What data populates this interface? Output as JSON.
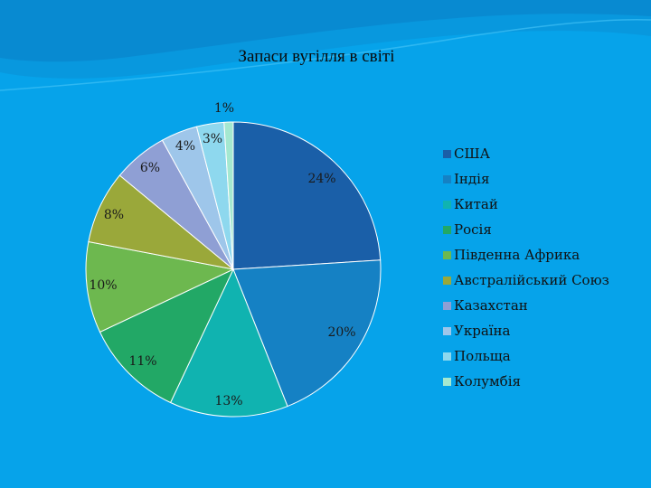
{
  "slide": {
    "title": "Запаси вугілля в світі",
    "background": "#06a3ea"
  },
  "chart_data": {
    "type": "pie",
    "title": "Запаси вугілля в світі",
    "legend_position": "right",
    "slices": [
      {
        "name": "США",
        "value": 24,
        "label": "24%",
        "color": "#1a5fa8"
      },
      {
        "name": "Індія",
        "value": 20,
        "label": "20%",
        "color": "#1581c4"
      },
      {
        "name": "Китай",
        "value": 13,
        "label": "13%",
        "color": "#10b3b0"
      },
      {
        "name": "Росія",
        "value": 11,
        "label": "11%",
        "color": "#22a866"
      },
      {
        "name": "Південна Африка",
        "value": 10,
        "label": "10%",
        "color": "#6db84f"
      },
      {
        "name": "Австралійський Союз",
        "value": 8,
        "label": "8%",
        "color": "#9aa83a"
      },
      {
        "name": "Казахстан",
        "value": 6,
        "label": "6%",
        "color": "#8f9fd4"
      },
      {
        "name": "Україна",
        "value": 4,
        "label": "4%",
        "color": "#9ec6ea"
      },
      {
        "name": "Польща",
        "value": 3,
        "label": "3%",
        "color": "#8ed8ee"
      },
      {
        "name": "Колумбія",
        "value": 1,
        "label": "1%",
        "color": "#a4e8d0"
      }
    ]
  }
}
